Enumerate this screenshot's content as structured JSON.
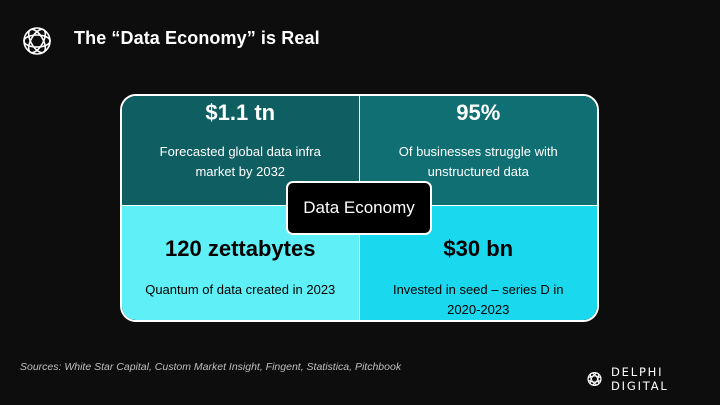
{
  "header": {
    "title": "The “Data Economy” is Real"
  },
  "center_label": "Data Economy",
  "stats": [
    {
      "value": "$1.1 tn",
      "description": "Forecasted global data infra market by 2032"
    },
    {
      "value": "95%",
      "description": "Of businesses struggle with unstructured data"
    },
    {
      "value": "120 zettabytes",
      "description": "Quantum of data created in 2023"
    },
    {
      "value": "$30 bn",
      "description": "Invested in seed – series D in 2020-2023"
    }
  ],
  "footer": {
    "sources": "Sources: White Star Capital, Custom Market Insight, Fingent, Statistica, Pitchbook",
    "brand": "DELPHI DIGITAL"
  },
  "colors": {
    "top_left": "#0f5e62",
    "top_right": "#0f6f72",
    "bottom_left": "#5ff0f7",
    "bottom_right": "#1ad8ee"
  },
  "icons": {
    "header_logo": "delphi-logo-icon",
    "footer_logo": "delphi-logo-icon"
  }
}
